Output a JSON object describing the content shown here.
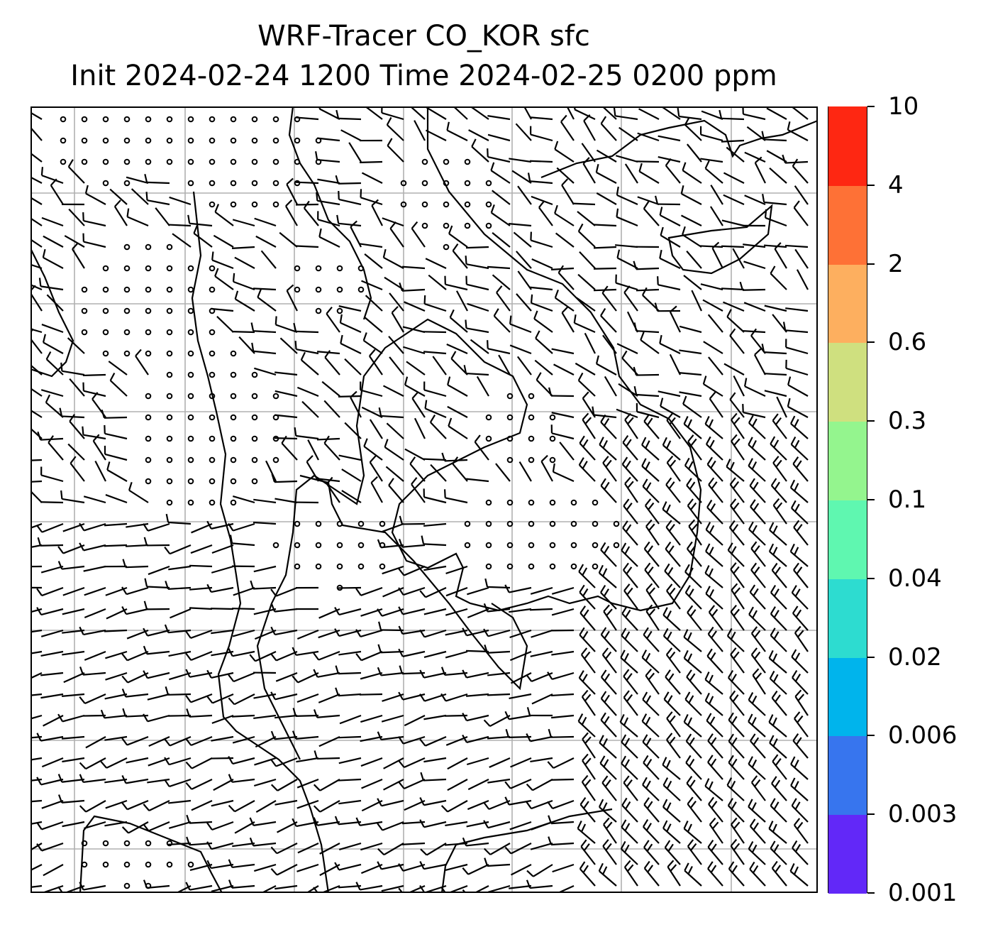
{
  "title": {
    "line1": "WRF-Tracer CO_KOR sfc",
    "line2": "Init 2024-02-24 1200 Time 2024-02-25 0200 ppm"
  },
  "colorbar": {
    "ticks": [
      "0.001",
      "0.003",
      "0.006",
      "0.02",
      "0.04",
      "0.1",
      "0.3",
      "0.6",
      "2",
      "4",
      "10"
    ],
    "colors": [
      "#6228f8",
      "#3775ee",
      "#00b4ec",
      "#2ddcd0",
      "#5ff7b0",
      "#94f58e",
      "#cfe07f",
      "#fdaf5f",
      "#fe7136",
      "#fe2712"
    ]
  },
  "map": {
    "gridline_color": "#b0b0b0",
    "coastline_color": "#000000",
    "wind_barbs": "black",
    "calm_marker": "circle"
  }
}
